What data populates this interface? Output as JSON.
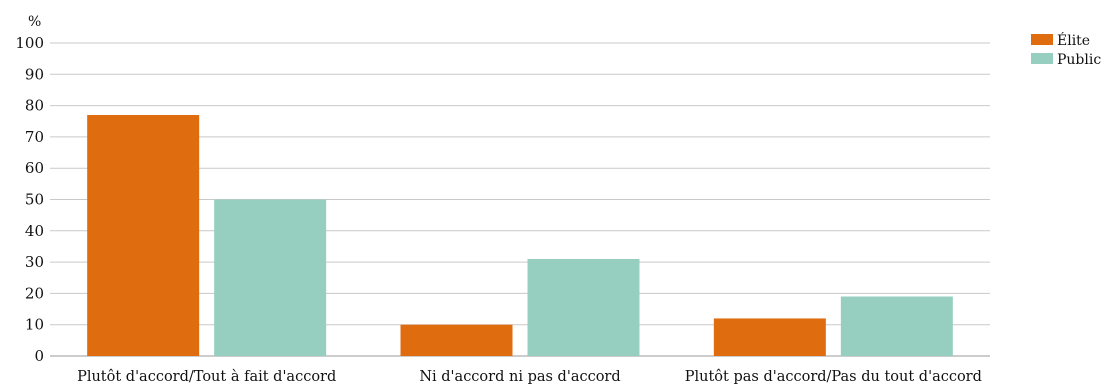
{
  "chart_data": {
    "type": "bar",
    "ylabel": "%",
    "ylim": [
      0,
      100
    ],
    "yticks": [
      0,
      10,
      20,
      30,
      40,
      50,
      60,
      70,
      80,
      90,
      100
    ],
    "categories": [
      "Plutôt d'accord/Tout à fait d'accord",
      "Ni d'accord ni pas d'accord",
      "Plutôt pas d'accord/Pas du tout d'accord"
    ],
    "series": [
      {
        "name": "Élite",
        "color": "#e06c10",
        "values": [
          77,
          10,
          12
        ]
      },
      {
        "name": "Public",
        "color": "#96cfc0",
        "values": [
          50,
          31,
          19
        ]
      }
    ],
    "grid": true,
    "legend": "top-right"
  }
}
